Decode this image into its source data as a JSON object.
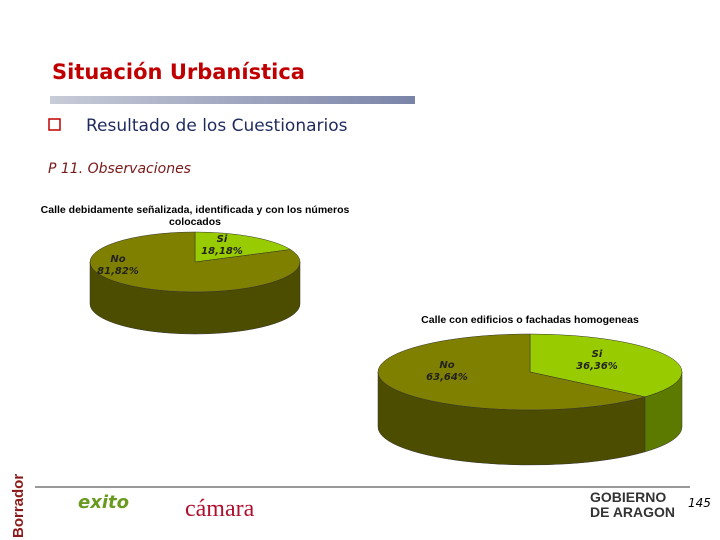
{
  "header": {
    "title": "Situación Urbanística",
    "bullet": "Resultado de los Cuestionarios",
    "question": "P 11. Observaciones"
  },
  "chart_data": [
    {
      "type": "pie",
      "title": "Calle debidamente señalizada, identificada y con los números colocados",
      "categories": [
        "Si",
        "No"
      ],
      "values": [
        18.18,
        81.82
      ],
      "value_labels": [
        "18,18%",
        "81,82%"
      ],
      "colors": [
        "#99cc00",
        "#808000"
      ]
    },
    {
      "type": "pie",
      "title": "Calle con edificios o fachadas homogeneas",
      "categories": [
        "Si",
        "No"
      ],
      "values": [
        36.36,
        63.64
      ],
      "value_labels": [
        "36,36%",
        "63,64%"
      ],
      "colors": [
        "#99cc00",
        "#808000"
      ]
    }
  ],
  "footer": {
    "page": "145",
    "watermark": "Borrador",
    "logos": [
      "exito",
      "cámara",
      "GOBIERNO DE ARAGON"
    ]
  }
}
